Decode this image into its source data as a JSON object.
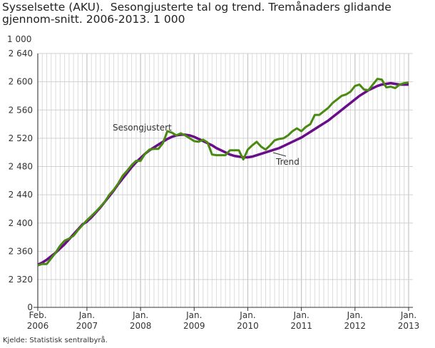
{
  "chart_data": {
    "type": "line",
    "title": "Sysselsette (AKU).  Sesongjusterte tal og trend. Tremånaders glidande gjennom-snitt. 2006-2013. 1 000",
    "unit_label": "1 000",
    "source": "Kjelde: Statistisk sentralbyrå.",
    "x_start": "2006-02",
    "x_end": "2013-01",
    "x_interval": "month",
    "x_tick_labels": [
      [
        "Feb.",
        "2006"
      ],
      [
        "Jan.",
        "2007"
      ],
      [
        "Jan.",
        "2008"
      ],
      [
        "Jan.",
        "2009"
      ],
      [
        "Jan.",
        "2010"
      ],
      [
        "Jan.",
        "2011"
      ],
      [
        "Jan.",
        "2012"
      ],
      [
        "Jan.",
        "2013"
      ]
    ],
    "y_tick_labels": [
      "2 640",
      "2 600",
      "2 560",
      "2 520",
      "2 480",
      "2 440",
      "2 400",
      "2 360",
      "2 320",
      "0"
    ],
    "ylim": [
      2320,
      2640
    ],
    "y_axis_break": true,
    "grid": true,
    "series": [
      {
        "name": "Sesongjustert",
        "color": "#4a8a12",
        "values": [
          2340,
          2342,
          2342,
          2350,
          2358,
          2368,
          2375,
          2378,
          2382,
          2390,
          2397,
          2404,
          2410,
          2416,
          2423,
          2430,
          2440,
          2447,
          2456,
          2467,
          2474,
          2482,
          2488,
          2488,
          2498,
          2504,
          2505,
          2505,
          2513,
          2530,
          2528,
          2524,
          2527,
          2524,
          2520,
          2516,
          2515,
          2518,
          2514,
          2497,
          2496,
          2496,
          2496,
          2503,
          2503,
          2503,
          2490,
          2504,
          2510,
          2515,
          2508,
          2504,
          2510,
          2517,
          2519,
          2520,
          2524,
          2530,
          2534,
          2530,
          2536,
          2540,
          2553,
          2553,
          2558,
          2563,
          2570,
          2575,
          2580,
          2582,
          2586,
          2594,
          2596,
          2589,
          2588,
          2596,
          2604,
          2603,
          2592,
          2593,
          2591,
          2596,
          2598,
          2599
        ]
      },
      {
        "name": "Trend",
        "color": "#6a0d8a",
        "values": [
          2341,
          2344,
          2348,
          2353,
          2358,
          2364,
          2370,
          2377,
          2384,
          2391,
          2398,
          2402,
          2408,
          2415,
          2422,
          2430,
          2438,
          2446,
          2455,
          2463,
          2471,
          2479,
          2486,
          2492,
          2498,
          2503,
          2507,
          2511,
          2515,
          2519,
          2522,
          2524,
          2525,
          2525,
          2524,
          2522,
          2519,
          2516,
          2513,
          2510,
          2506,
          2503,
          2500,
          2497,
          2495,
          2494,
          2493,
          2493,
          2494,
          2496,
          2498,
          2500,
          2502,
          2504,
          2506,
          2509,
          2512,
          2515,
          2518,
          2521,
          2525,
          2529,
          2533,
          2537,
          2541,
          2545,
          2550,
          2555,
          2560,
          2565,
          2570,
          2575,
          2580,
          2584,
          2588,
          2591,
          2594,
          2596,
          2597,
          2598,
          2597,
          2596,
          2596,
          2596
        ]
      }
    ]
  }
}
